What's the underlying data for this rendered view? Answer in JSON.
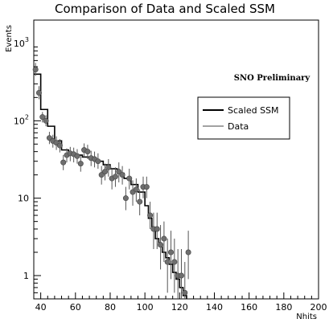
{
  "chart_data": {
    "type": "scatter",
    "title": "Comparison of Data and Scaled SSM",
    "xlabel": "Nhits",
    "ylabel": "Events",
    "xlim": [
      36,
      200
    ],
    "ylim": [
      0.5,
      2000
    ],
    "ylog": true,
    "grid": false,
    "annotation": "SNO Preliminary",
    "legend": {
      "position": "right",
      "entries": [
        "Scaled SSM",
        "Data"
      ]
    },
    "x_ticks": [
      "40",
      "60",
      "80",
      "100",
      "120",
      "140",
      "160",
      "180",
      "200"
    ],
    "y_ticks": [
      {
        "base": "1",
        "exp": ""
      },
      {
        "base": "10",
        "exp": ""
      },
      {
        "base": "10",
        "exp": "2"
      },
      {
        "base": "10",
        "exp": "3"
      }
    ],
    "series": [
      {
        "name": "Scaled SSM",
        "kind": "step",
        "x": [
          36,
          40,
          44,
          48,
          52,
          56,
          60,
          64,
          68,
          72,
          76,
          80,
          84,
          88,
          92,
          96,
          100,
          102,
          104,
          106,
          108,
          110,
          112,
          114,
          116,
          118,
          120,
          122,
          124
        ],
        "values": [
          400,
          140,
          85,
          55,
          42,
          38,
          36,
          34,
          32,
          30,
          27,
          24,
          21,
          18,
          15,
          12,
          8,
          5.5,
          4,
          3,
          2.4,
          2,
          1.7,
          1.4,
          1.1,
          0.9,
          0.7,
          0.55,
          0.5
        ]
      },
      {
        "name": "Data",
        "kind": "points",
        "points": [
          [
            37,
            460,
            380,
            560
          ],
          [
            39,
            230,
            190,
            280
          ],
          [
            41,
            112,
            95,
            130
          ],
          [
            43,
            100,
            85,
            118
          ],
          [
            45,
            60,
            50,
            72
          ],
          [
            47,
            55,
            45,
            66
          ],
          [
            49,
            52,
            42,
            63
          ],
          [
            51,
            48,
            39,
            58
          ],
          [
            53,
            29,
            23,
            36
          ],
          [
            55,
            36,
            29,
            44
          ],
          [
            57,
            38,
            30,
            46
          ],
          [
            59,
            37,
            29,
            45
          ],
          [
            61,
            35,
            28,
            43
          ],
          [
            63,
            28,
            22,
            35
          ],
          [
            65,
            42,
            34,
            51
          ],
          [
            67,
            40,
            32,
            49
          ],
          [
            69,
            33,
            26,
            41
          ],
          [
            71,
            32,
            25,
            40
          ],
          [
            73,
            30,
            24,
            38
          ],
          [
            75,
            20,
            15,
            26
          ],
          [
            77,
            22,
            17,
            28
          ],
          [
            79,
            25,
            19,
            32
          ],
          [
            81,
            18,
            13,
            24
          ],
          [
            83,
            19,
            14,
            25
          ],
          [
            85,
            22,
            16,
            29
          ],
          [
            87,
            20,
            15,
            26
          ],
          [
            89,
            10,
            7,
            14
          ],
          [
            91,
            18,
            13,
            24
          ],
          [
            93,
            12,
            8,
            17
          ],
          [
            95,
            13,
            9,
            18
          ],
          [
            97,
            9,
            6,
            13
          ],
          [
            99,
            14,
            10,
            19
          ],
          [
            101,
            14,
            10,
            19
          ],
          [
            103,
            6,
            4,
            9
          ],
          [
            105,
            4,
            2.2,
            6.5
          ],
          [
            107,
            4,
            2.2,
            6.5
          ],
          [
            109,
            2.5,
            1.2,
            4.5
          ],
          [
            111,
            3,
            1.5,
            5
          ],
          [
            113,
            1.5,
            0.6,
            3
          ],
          [
            115,
            2,
            0.9,
            3.8
          ],
          [
            117,
            1.5,
            0.6,
            3
          ],
          [
            119,
            1,
            0.5,
            2.2
          ],
          [
            121,
            1,
            0.5,
            2.2
          ],
          [
            123,
            0.6,
            0.5,
            1.5
          ],
          [
            125,
            2,
            0.9,
            3.8
          ]
        ]
      }
    ]
  }
}
